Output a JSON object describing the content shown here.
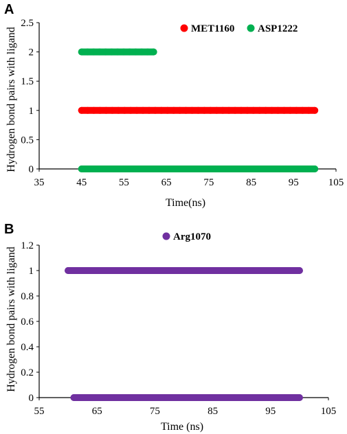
{
  "chart_data": [
    {
      "panel_label": "A",
      "type": "scatter",
      "xlabel": "Time(ns)",
      "ylabel": "Hydrogen bond pairs  with ligand",
      "xlim": [
        35,
        105
      ],
      "ylim": [
        0,
        2.5
      ],
      "x_ticks": [
        35,
        45,
        55,
        65,
        75,
        85,
        95,
        105
      ],
      "y_ticks": [
        "0",
        "0.5",
        "1",
        "1.5",
        "2",
        "2.5"
      ],
      "legend_position": "top-right",
      "grid": false,
      "series": [
        {
          "name": "MET1160",
          "color": "#ff0000",
          "segments": [
            {
              "y": 1,
              "x_start": 45,
              "x_end": 100
            }
          ]
        },
        {
          "name": "ASP1222",
          "color": "#00b050",
          "segments": [
            {
              "y": 2,
              "x_start": 45,
              "x_end": 62
            },
            {
              "y": 0,
              "x_start": 45,
              "x_end": 100
            }
          ]
        }
      ]
    },
    {
      "panel_label": "B",
      "type": "scatter",
      "xlabel": "Time (ns)",
      "ylabel": "Hydrogen bond pairs  with ligand",
      "xlim": [
        55,
        105
      ],
      "ylim": [
        0,
        1.2
      ],
      "x_ticks": [
        55,
        65,
        75,
        85,
        95,
        105
      ],
      "y_ticks": [
        "0",
        "0.2",
        "0.4",
        "0.6",
        "0.8",
        "1",
        "1.2"
      ],
      "legend_position": "top-center",
      "grid": false,
      "series": [
        {
          "name": "Arg1070",
          "color": "#7030a0",
          "segments": [
            {
              "y": 1,
              "x_start": 60,
              "x_end": 100
            },
            {
              "y": 0,
              "x_start": 61,
              "x_end": 100
            }
          ]
        }
      ]
    }
  ]
}
